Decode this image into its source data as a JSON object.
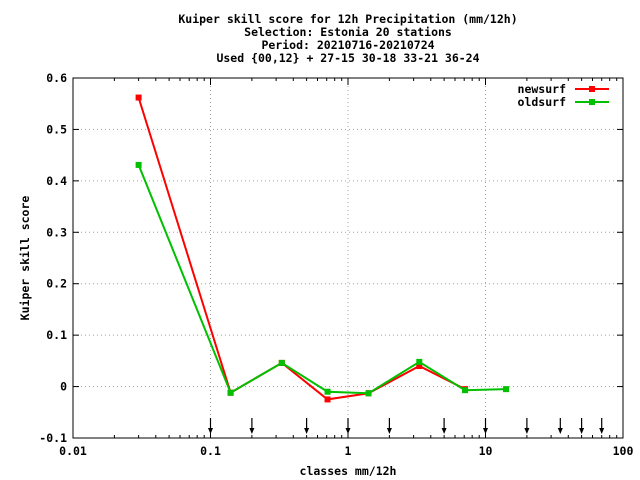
{
  "chart_data": {
    "type": "line",
    "title_lines": [
      "Kuiper skill score  for 12h Precipitation (mm/12h)",
      "Selection: Estonia     20 stations",
      "Period: 20210716-20210724",
      "Used {00,12} + 27-15 30-18 33-21 36-24"
    ],
    "xlabel": "classes mm/12h",
    "ylabel": "Kuiper skill score",
    "xscale": "log",
    "xlim": [
      0.01,
      100
    ],
    "ylim": [
      -0.1,
      0.6
    ],
    "x_ticks": [
      {
        "value": 0.01,
        "label": "0.01"
      },
      {
        "value": 0.1,
        "label": "0.1"
      },
      {
        "value": 1,
        "label": "1"
      },
      {
        "value": 10,
        "label": "10"
      },
      {
        "value": 100,
        "label": "100"
      }
    ],
    "y_ticks": [
      {
        "value": -0.1,
        "label": "-0.1"
      },
      {
        "value": 0,
        "label": "0"
      },
      {
        "value": 0.1,
        "label": "0.1"
      },
      {
        "value": 0.2,
        "label": "0.2"
      },
      {
        "value": 0.3,
        "label": "0.3"
      },
      {
        "value": 0.4,
        "label": "0.4"
      },
      {
        "value": 0.5,
        "label": "0.5"
      },
      {
        "value": 0.6,
        "label": "0.6"
      }
    ],
    "grid": true,
    "legend_position": "top-right",
    "threshold_arrows": [
      0.1,
      0.2,
      0.5,
      1,
      2,
      5,
      10,
      20,
      35,
      50,
      70
    ],
    "series": [
      {
        "name": "newsurf",
        "color": "#ff0000",
        "x": [
          0.03,
          0.14,
          0.33,
          0.71,
          1.41,
          3.3,
          7.1
        ],
        "y": [
          0.562,
          -0.012,
          0.046,
          -0.025,
          -0.013,
          0.04,
          -0.005
        ]
      },
      {
        "name": "oldsurf",
        "color": "#00c000",
        "x": [
          0.03,
          0.14,
          0.33,
          0.71,
          1.41,
          3.3,
          7.1,
          14.1
        ],
        "y": [
          0.431,
          -0.012,
          0.046,
          -0.01,
          -0.013,
          0.048,
          -0.007,
          -0.005
        ]
      }
    ]
  }
}
